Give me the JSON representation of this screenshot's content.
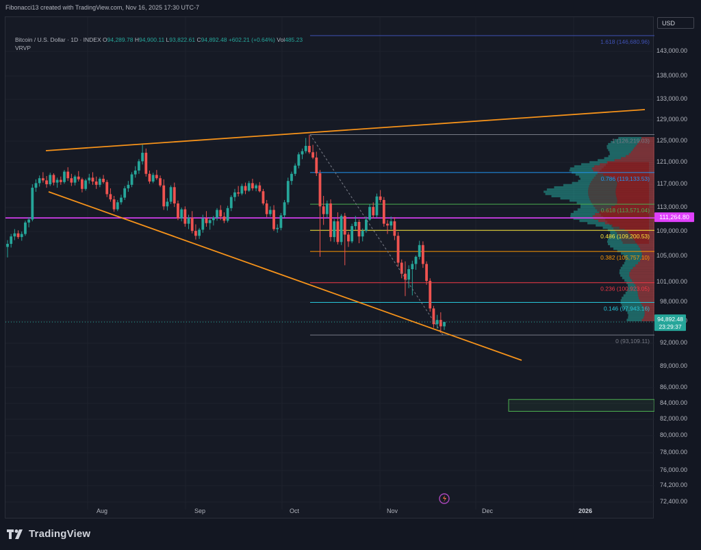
{
  "header": {
    "text": "Fibonacci13 created with TradingView.com, Nov 16, 2025 17:30 UTC-7"
  },
  "legend": {
    "symbol": "Bitcoin / U.S. Dollar · 1D · INDEX",
    "o_label": "O",
    "o": "94,289.78",
    "h_label": "H",
    "h": "94,900.11",
    "l_label": "L",
    "l": "93,822.61",
    "c_label": "C",
    "c": "94,892.48",
    "change": "+602.21 (+0.64%)",
    "vol_label": "Vol",
    "vol": "485.23",
    "indicator": "VRVP"
  },
  "currency_button": "USD",
  "footer": {
    "brand": "TradingView"
  },
  "colors": {
    "up": "#26a69a",
    "down": "#ef5350",
    "trendline": "#f7931a",
    "magenta": "#e040fb",
    "background": "#161a25"
  },
  "chart_data": {
    "type": "candlestick",
    "y_axis_ticks": [
      "143,000.00",
      "138,000.00",
      "133,000.00",
      "129,000.00",
      "125,000.00",
      "121,000.00",
      "117,000.00",
      "113,000.00",
      "109,000.00",
      "105,000.00",
      "101,000.00",
      "98,000.00",
      "95,000.00",
      "92,000.00",
      "89,000.00",
      "86,000.00",
      "84,000.00",
      "82,000.00",
      "80,000.00",
      "78,000.00",
      "76,000.00",
      "74,200.00",
      "72,400.00"
    ],
    "x_axis_ticks": [
      "Aug",
      "Sep",
      "Oct",
      "Nov",
      "Dec",
      "2026"
    ],
    "price_labels": {
      "current_price": "94,892.48",
      "countdown": "23:29:37",
      "horizontal_line": "111,264.80"
    },
    "horizontal_line_price": 111264.8,
    "fibonacci_levels": [
      {
        "ratio": 1.618,
        "label": "1.618 (146,680.96)",
        "price": 146680.96,
        "color": "#3f51b5"
      },
      {
        "ratio": 1,
        "label": "1 (126,219.03)",
        "price": 126219.03,
        "color": "#787b86"
      },
      {
        "ratio": 0.786,
        "label": "0.786 (119,133.53)",
        "price": 119133.53,
        "color": "#2196f3"
      },
      {
        "ratio": 0.618,
        "label": "0.618 (113,571.04)",
        "price": 113571.04,
        "color": "#4caf50"
      },
      {
        "ratio": 0.486,
        "label": "0.486 (109,200.53)",
        "price": 109200.53,
        "color": "#ffeb3b"
      },
      {
        "ratio": 0.382,
        "label": "0.382 (105,757.10)",
        "price": 105757.1,
        "color": "#ff9800"
      },
      {
        "ratio": 0.236,
        "label": "0.236 (100,923.05)",
        "price": 100923.05,
        "color": "#f23645"
      },
      {
        "ratio": 0.146,
        "label": "0.146 (97,943.16)",
        "price": 97943.16,
        "color": "#26c6da"
      },
      {
        "ratio": 0,
        "label": "0 (93,109.11)",
        "price": 93109.11,
        "color": "#787b86"
      }
    ],
    "target_zone": {
      "top": 84500,
      "bottom": 83000,
      "color": "#4caf50"
    },
    "series": [
      {
        "name": "BTCUSD",
        "ohlc": [
          [
            106500,
            107600,
            104800,
            107000
          ],
          [
            107000,
            108600,
            106400,
            108200
          ],
          [
            108200,
            109400,
            107600,
            108700
          ],
          [
            108700,
            109200,
            107800,
            108100
          ],
          [
            108100,
            109000,
            107500,
            108600
          ],
          [
            108600,
            110800,
            108300,
            110500
          ],
          [
            110500,
            111400,
            109700,
            111000
          ],
          [
            111000,
            117000,
            110700,
            116400
          ],
          [
            116400,
            117900,
            115700,
            117200
          ],
          [
            117200,
            118600,
            116600,
            118100
          ],
          [
            118100,
            119200,
            117300,
            117700
          ],
          [
            117700,
            118500,
            116400,
            117000
          ],
          [
            117000,
            119100,
            116700,
            118700
          ],
          [
            118700,
            119000,
            116800,
            117300
          ],
          [
            117300,
            118200,
            116400,
            117800
          ],
          [
            117800,
            118400,
            116900,
            117400
          ],
          [
            117400,
            119600,
            117100,
            119300
          ],
          [
            119300,
            120100,
            117600,
            118100
          ],
          [
            118100,
            118900,
            116700,
            117300
          ],
          [
            117300,
            118700,
            116800,
            118400
          ],
          [
            118400,
            119400,
            117500,
            117900
          ],
          [
            117900,
            118200,
            115600,
            116200
          ],
          [
            116200,
            118000,
            115900,
            117700
          ],
          [
            117700,
            118900,
            117100,
            118200
          ],
          [
            118200,
            119200,
            116900,
            117500
          ],
          [
            117500,
            118400,
            116200,
            116900
          ],
          [
            116900,
            118300,
            116500,
            118000
          ],
          [
            118000,
            118700,
            117100,
            117400
          ],
          [
            117400,
            117800,
            114800,
            115300
          ],
          [
            115300,
            116300,
            114000,
            114400
          ],
          [
            114400,
            115000,
            112300,
            112700
          ],
          [
            112700,
            114300,
            112400,
            113900
          ],
          [
            113900,
            115200,
            113500,
            114700
          ],
          [
            114700,
            116700,
            114300,
            116300
          ],
          [
            116300,
            117600,
            115700,
            116900
          ],
          [
            116900,
            119200,
            116500,
            118800
          ],
          [
            118800,
            120300,
            118200,
            119500
          ],
          [
            119500,
            121600,
            118900,
            121200
          ],
          [
            121200,
            124300,
            120600,
            122800
          ],
          [
            122800,
            123600,
            118400,
            118900
          ],
          [
            118900,
            119500,
            117100,
            117500
          ],
          [
            117500,
            119100,
            117200,
            118700
          ],
          [
            118700,
            119600,
            117800,
            118100
          ],
          [
            118100,
            118600,
            116500,
            116800
          ],
          [
            116800,
            117900,
            112600,
            113200
          ],
          [
            113200,
            114600,
            112500,
            114000
          ],
          [
            114000,
            116800,
            113600,
            116500
          ],
          [
            116500,
            117300,
            113100,
            113700
          ],
          [
            113700,
            114200,
            110900,
            111200
          ],
          [
            111200,
            113000,
            110700,
            112700
          ],
          [
            112700,
            113200,
            109800,
            110300
          ],
          [
            110300,
            111800,
            109400,
            111300
          ],
          [
            111300,
            112400,
            108700,
            109100
          ],
          [
            109100,
            110200,
            107700,
            108300
          ],
          [
            108300,
            109600,
            107800,
            109300
          ],
          [
            109300,
            111800,
            108800,
            111200
          ],
          [
            111200,
            112400,
            109800,
            110400
          ],
          [
            110400,
            111400,
            109300,
            110900
          ],
          [
            110900,
            111600,
            110000,
            111300
          ],
          [
            111300,
            112900,
            110800,
            112600
          ],
          [
            112600,
            113400,
            110900,
            111500
          ],
          [
            111500,
            112200,
            110400,
            110800
          ],
          [
            110800,
            113300,
            110500,
            112900
          ],
          [
            112900,
            115100,
            112400,
            114800
          ],
          [
            114800,
            116200,
            114100,
            115600
          ],
          [
            115600,
            116700,
            114900,
            115400
          ],
          [
            115400,
            117100,
            115100,
            116700
          ],
          [
            116700,
            117300,
            115300,
            115900
          ],
          [
            115900,
            117600,
            115700,
            117200
          ],
          [
            117200,
            118000,
            115900,
            116300
          ],
          [
            116300,
            117100,
            115800,
            116800
          ],
          [
            116800,
            117400,
            115600,
            115800
          ],
          [
            115800,
            116200,
            113400,
            113700
          ],
          [
            113700,
            114300,
            111400,
            111900
          ],
          [
            111900,
            113200,
            111500,
            112600
          ],
          [
            112600,
            113400,
            109100,
            109400
          ],
          [
            109400,
            110200,
            108800,
            109600
          ],
          [
            109600,
            112100,
            109200,
            111700
          ],
          [
            111700,
            114300,
            111300,
            113900
          ],
          [
            113900,
            118200,
            113500,
            117600
          ],
          [
            117600,
            119300,
            116900,
            118900
          ],
          [
            118900,
            120800,
            118500,
            120400
          ],
          [
            120400,
            122900,
            119900,
            122500
          ],
          [
            122500,
            123600,
            121600,
            123100
          ],
          [
            123100,
            125600,
            122700,
            124100
          ],
          [
            124100,
            126200,
            122600,
            122900
          ],
          [
            122900,
            124300,
            121600,
            121900
          ],
          [
            121900,
            123000,
            118500,
            119000
          ],
          [
            119000,
            119600,
            104900,
            113200
          ],
          [
            113200,
            115000,
            110100,
            111900
          ],
          [
            111900,
            114200,
            111300,
            113700
          ],
          [
            113700,
            114400,
            107400,
            108100
          ],
          [
            108100,
            111100,
            107300,
            110700
          ],
          [
            110700,
            112200,
            106900,
            107300
          ],
          [
            107300,
            111900,
            106800,
            111600
          ],
          [
            111600,
            112100,
            103600,
            108500
          ],
          [
            108500,
            108900,
            106500,
            107400
          ],
          [
            107400,
            110300,
            107100,
            109900
          ],
          [
            109900,
            111600,
            109300,
            110600
          ],
          [
            110600,
            111000,
            107100,
            108200
          ],
          [
            108200,
            109500,
            107400,
            109100
          ],
          [
            109100,
            111500,
            108800,
            111000
          ],
          [
            111000,
            113600,
            110800,
            113100
          ],
          [
            113100,
            113900,
            111200,
            111700
          ],
          [
            111700,
            115400,
            111300,
            114900
          ],
          [
            114900,
            116000,
            113900,
            114300
          ],
          [
            114300,
            114800,
            109800,
            110300
          ],
          [
            110300,
            110900,
            108600,
            110000
          ],
          [
            110000,
            111500,
            109400,
            110700
          ],
          [
            110700,
            111400,
            107600,
            108300
          ],
          [
            108300,
            108900,
            103400,
            104000
          ],
          [
            104000,
            104500,
            101600,
            102300
          ],
          [
            102300,
            104200,
            98900,
            101400
          ],
          [
            101400,
            103600,
            100100,
            103000
          ],
          [
            103000,
            104300,
            99000,
            103800
          ],
          [
            103800,
            105100,
            102900,
            104900
          ],
          [
            104900,
            107500,
            104500,
            106800
          ],
          [
            106800,
            107400,
            103200,
            103800
          ],
          [
            103800,
            104200,
            100600,
            101200
          ],
          [
            101200,
            101600,
            96500,
            97000
          ],
          [
            97000,
            97400,
            94100,
            94600
          ],
          [
            94600,
            96000,
            94000,
            95200
          ],
          [
            95200,
            96400,
            93400,
            94300
          ],
          [
            94300,
            94900,
            93800,
            94900
          ]
        ]
      }
    ],
    "ylim": [
      71800,
      148500
    ]
  }
}
